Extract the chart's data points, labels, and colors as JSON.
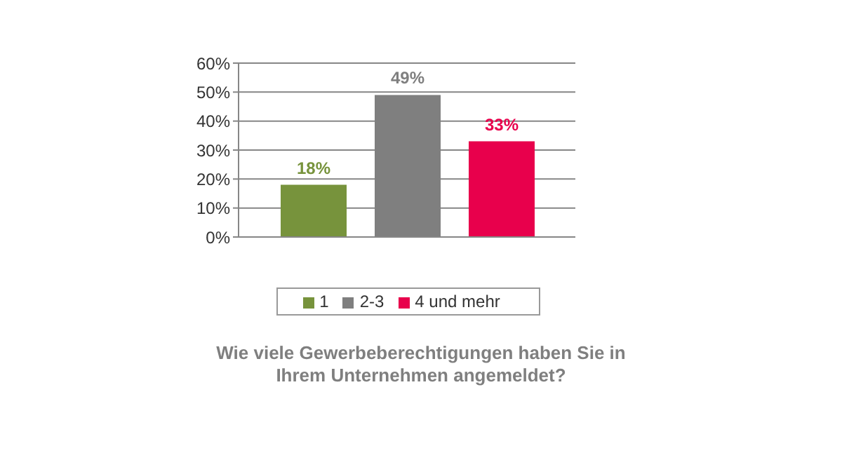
{
  "chart_data": {
    "type": "bar",
    "title": "Wie viele Gewerbeberechtigungen haben Sie in Ihrem Unternehmen angemeldet?",
    "categories": [
      null
    ],
    "series": [
      {
        "name": "1",
        "color": "#77933c",
        "values": [
          18
        ],
        "value_labels": [
          "18%"
        ]
      },
      {
        "name": "2-3",
        "color": "#7f7f7f",
        "values": [
          49
        ],
        "value_labels": [
          "49%"
        ]
      },
      {
        "name": "4 und mehr",
        "color": "#e8004c",
        "values": [
          33
        ],
        "value_labels": [
          "33%"
        ]
      }
    ],
    "ylim": [
      0,
      60
    ],
    "yticks": [
      {
        "value": 0,
        "label": "0%"
      },
      {
        "value": 10,
        "label": "10%"
      },
      {
        "value": 20,
        "label": "20%"
      },
      {
        "value": 30,
        "label": "30%"
      },
      {
        "value": 40,
        "label": "40%"
      },
      {
        "value": 50,
        "label": "50%"
      },
      {
        "value": 60,
        "label": "60%"
      }
    ],
    "grid": "y",
    "legend": "bottom"
  }
}
